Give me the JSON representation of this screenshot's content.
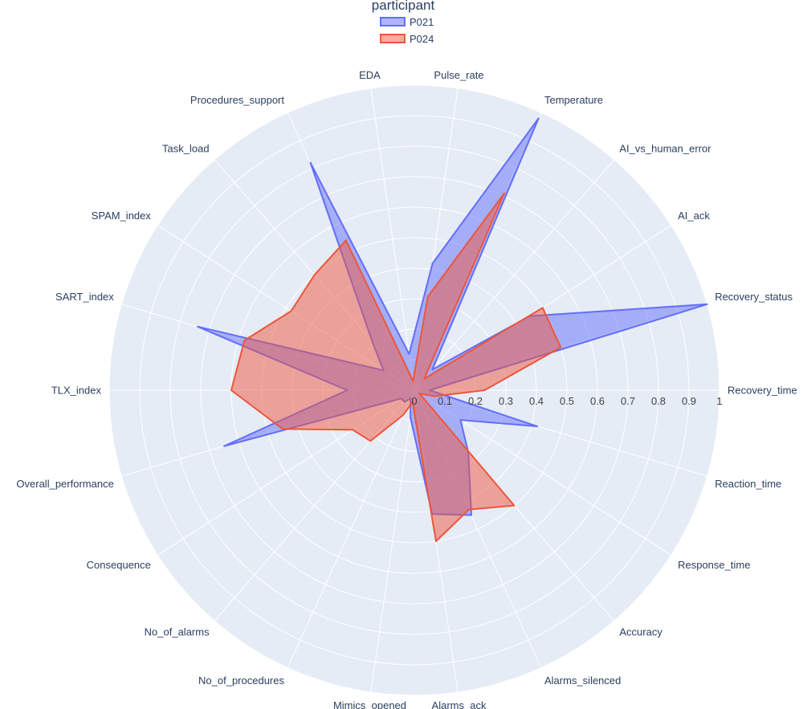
{
  "chart_data": {
    "type": "radar",
    "legend": {
      "title": "participant",
      "placement": "top-center"
    },
    "radial_axis": {
      "range": [
        0,
        1
      ],
      "ticks": [
        0,
        0.1,
        0.2,
        0.3,
        0.4,
        0.5,
        0.6,
        0.7,
        0.8,
        0.9,
        1
      ],
      "tick_labels": [
        "0",
        "0.1",
        "0.2",
        "0.3",
        "0.4",
        "0.5",
        "0.6",
        "0.7",
        "0.8",
        "0.9",
        "1"
      ]
    },
    "categories": [
      "Recovery_time",
      "Recovery_status",
      "AI_ack",
      "AI_vs_human_error",
      "Temperature",
      "Pulse_rate",
      "EDA",
      "Procedures_support",
      "Task_load",
      "SPAM_index",
      "SART_index",
      "TLX_index",
      "Overall_performance",
      "Consequence",
      "No_of_alarms",
      "No_of_procedures",
      "Mimics_opened",
      "Alarms_ack",
      "Alarms_silenced",
      "Accuracy",
      "Response_time",
      "Reaction_time"
    ],
    "series": [
      {
        "name": "P021",
        "color": "#636efa",
        "values": [
          0.05,
          1.0,
          0.45,
          0.09,
          0.98,
          0.42,
          0.12,
          0.82,
          0.21,
          0.12,
          0.74,
          0.22,
          0.65,
          0.05,
          0.05,
          0.03,
          0.09,
          0.41,
          0.45,
          0.27,
          0.18,
          0.42
        ]
      },
      {
        "name": "P024",
        "color": "#ef553b",
        "values": [
          0.23,
          0.5,
          0.5,
          0.05,
          0.71,
          0.31,
          0.03,
          0.54,
          0.5,
          0.48,
          0.58,
          0.6,
          0.45,
          0.24,
          0.22,
          0.09,
          0.04,
          0.5,
          0.43,
          0.5,
          0.02,
          0.07
        ]
      }
    ],
    "background_color": "#e5ecf6",
    "grid_color": "#ffffff"
  }
}
